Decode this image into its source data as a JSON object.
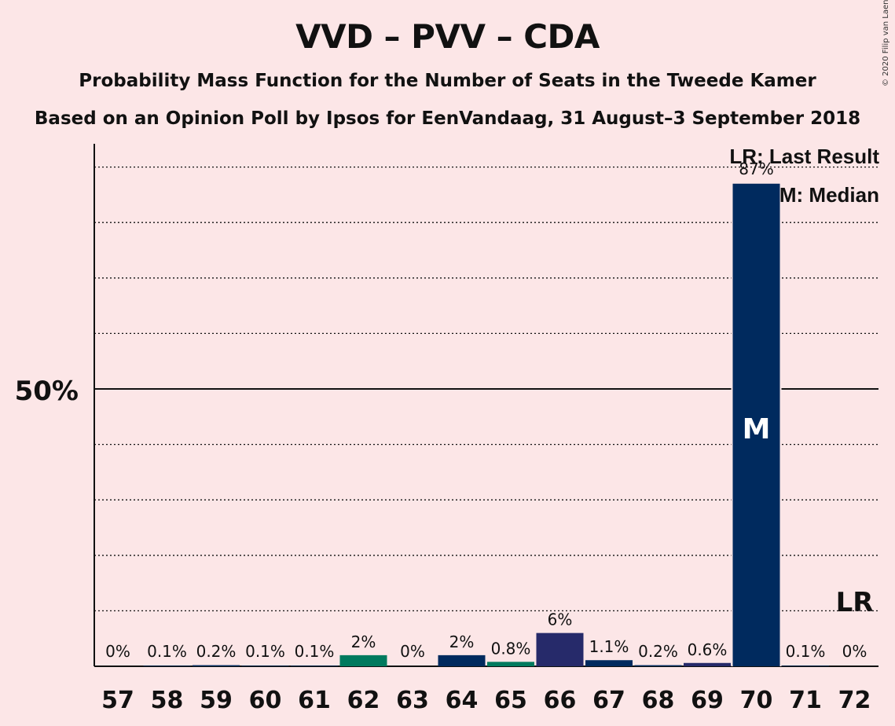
{
  "title": "VVD – PVV – CDA",
  "subtitle": "Probability Mass Function for the Number of Seats in the Tweede Kamer",
  "subtitle2": "Based on an Opinion Poll by Ipsos for EenVandaag, 31 August–3 September 2018",
  "copyright": "© 2020 Filip van Laenen",
  "legend": {
    "lr": "LR: Last Result",
    "m": "M: Median"
  },
  "colors": {
    "background": "#fce6e7",
    "navy": "#002a5e",
    "green": "#007a5e",
    "indigo": "#262a6a"
  },
  "chart_data": {
    "type": "bar",
    "title": "VVD – PVV – CDA",
    "ytick_label": "50%",
    "ylim": [
      0,
      95
    ],
    "categories": [
      "57",
      "58",
      "59",
      "60",
      "61",
      "62",
      "63",
      "64",
      "65",
      "66",
      "67",
      "68",
      "69",
      "70",
      "71",
      "72"
    ],
    "values": [
      0,
      0.1,
      0.2,
      0.1,
      0.1,
      2,
      0,
      2,
      0.8,
      6,
      1.1,
      0.2,
      0.6,
      87,
      0.1,
      0
    ],
    "labels": [
      "0%",
      "0.1%",
      "0.2%",
      "0.1%",
      "0.1%",
      "2%",
      "0%",
      "2%",
      "0.8%",
      "6%",
      "1.1%",
      "0.2%",
      "0.6%",
      "87%",
      "0.1%",
      "0%"
    ],
    "bar_colors": [
      "#002a5e",
      "#002a5e",
      "#002a5e",
      "#002a5e",
      "#002a5e",
      "#007a5e",
      "#002a5e",
      "#002a5e",
      "#007a5e",
      "#262a6a",
      "#002a5e",
      "#002a5e",
      "#262a6a",
      "#002a5e",
      "#002a5e",
      "#002a5e"
    ],
    "median": {
      "category": "70",
      "label": "M"
    },
    "last_result": {
      "category": "72",
      "label": "LR"
    }
  }
}
